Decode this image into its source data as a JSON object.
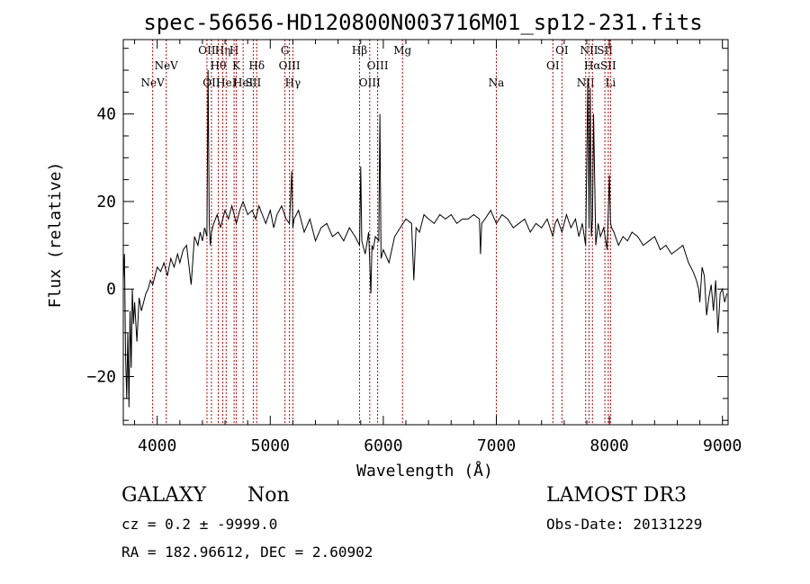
{
  "chart_data": {
    "type": "line",
    "title": "spec-56656-HD120800N003716M01_sp12-231.fits",
    "xlabel": "Wavelength (Å)",
    "ylabel": "Flux (relative)",
    "xlim": [
      3700,
      9050
    ],
    "ylim": [
      -31,
      57
    ],
    "x_ticks": [
      4000,
      5000,
      6000,
      7000,
      8000,
      9000
    ],
    "y_ticks": [
      -20,
      0,
      20,
      40
    ],
    "series": [
      {
        "color": "#000000",
        "x": [
          3700,
          3710,
          3720,
          3730,
          3740,
          3750,
          3760,
          3770,
          3780,
          3790,
          3800,
          3820,
          3840,
          3860,
          3880,
          3900,
          3920,
          3940,
          3960,
          3980,
          4000,
          4030,
          4060,
          4090,
          4120,
          4150,
          4180,
          4200,
          4230,
          4260,
          4300,
          4330,
          4360,
          4380,
          4400,
          4420,
          4440,
          4450,
          4460,
          4470,
          4480,
          4500,
          4530,
          4560,
          4600,
          4630,
          4660,
          4700,
          4730,
          4760,
          4800,
          4840,
          4870,
          4900,
          4930,
          4960,
          5000,
          5030,
          5060,
          5100,
          5140,
          5170,
          5190,
          5200,
          5210,
          5250,
          5300,
          5350,
          5400,
          5450,
          5500,
          5550,
          5600,
          5650,
          5700,
          5750,
          5790,
          5800,
          5810,
          5840,
          5870,
          5890,
          5900,
          5910,
          5930,
          5960,
          5970,
          5980,
          6000,
          6050,
          6100,
          6150,
          6200,
          6250,
          6270,
          6290,
          6320,
          6360,
          6400,
          6450,
          6500,
          6550,
          6600,
          6650,
          6700,
          6750,
          6800,
          6850,
          6860,
          6870,
          6900,
          6950,
          7000,
          7050,
          7100,
          7150,
          7200,
          7250,
          7300,
          7350,
          7400,
          7450,
          7500,
          7520,
          7540,
          7580,
          7620,
          7660,
          7700,
          7730,
          7760,
          7790,
          7810,
          7820,
          7830,
          7840,
          7850,
          7860,
          7880,
          7900,
          7920,
          7950,
          7980,
          8000,
          8010,
          8020,
          8040,
          8080,
          8120,
          8160,
          8200,
          8250,
          8300,
          8350,
          8400,
          8450,
          8500,
          8550,
          8600,
          8650,
          8700,
          8740,
          8770,
          8790,
          8800,
          8820,
          8840,
          8860,
          8880,
          8900,
          8920,
          8940,
          8960,
          8980,
          9000,
          9020,
          9040
        ],
        "y": [
          2,
          8,
          -15,
          -25,
          -10,
          -27,
          -5,
          -18,
          0,
          -8,
          -3,
          -12,
          -2,
          -5,
          -3,
          -1,
          0,
          2,
          1,
          3,
          5,
          4,
          6,
          3,
          7,
          5,
          8,
          6,
          9,
          10,
          1,
          12,
          10,
          13,
          11,
          14,
          12,
          50,
          15,
          10,
          13,
          15,
          17,
          14,
          18,
          16,
          19,
          15,
          18,
          20,
          17,
          18,
          16,
          19,
          17,
          15,
          18,
          14,
          17,
          19,
          16,
          15,
          27,
          14,
          16,
          18,
          13,
          16,
          11,
          14,
          15,
          12,
          13,
          11,
          14,
          12,
          10,
          28,
          11,
          8,
          13,
          -1,
          10,
          9,
          12,
          11,
          40,
          7,
          9,
          6,
          12,
          14,
          16,
          15,
          2,
          14,
          13,
          17,
          16,
          15,
          17,
          16,
          17,
          15,
          16,
          16,
          17,
          16,
          8,
          15,
          16,
          18,
          15,
          17,
          16,
          14,
          15,
          16,
          13,
          15,
          14,
          16,
          12,
          15,
          16,
          13,
          17,
          14,
          16,
          12,
          15,
          10,
          48,
          14,
          46,
          12,
          16,
          40,
          10,
          15,
          12,
          14,
          9,
          26,
          15,
          14,
          13,
          10,
          12,
          11,
          13,
          12,
          10,
          11,
          12,
          9,
          10,
          8,
          9,
          10,
          6,
          4,
          2,
          0,
          -3,
          5,
          3,
          -6,
          -2,
          1,
          -5,
          2,
          -10,
          -1,
          0,
          -3,
          -1
        ]
      }
    ],
    "line_markers": [
      {
        "wave": 3960,
        "label": "NeV",
        "row": 3
      },
      {
        "wave": 4080,
        "label": "NeV",
        "row": 2
      },
      {
        "wave": 4440,
        "label": "OII",
        "row": 1
      },
      {
        "wave": 4480,
        "label": "OII",
        "row": 3
      },
      {
        "wave": 4540,
        "label": "Hθ",
        "row": 2
      },
      {
        "wave": 4580,
        "label": "Hη",
        "row": 1
      },
      {
        "wave": 4610,
        "label": "HeI",
        "row": 3
      },
      {
        "wave": 4680,
        "label": "H",
        "row": 1
      },
      {
        "wave": 4700,
        "label": "K",
        "row": 2
      },
      {
        "wave": 4760,
        "label": "HeI",
        "row": 3
      },
      {
        "wave": 4850,
        "label": "SII",
        "row": 3
      },
      {
        "wave": 4880,
        "label": "Hδ",
        "row": 2
      },
      {
        "wave": 5130,
        "label": "G",
        "row": 1
      },
      {
        "wave": 5170,
        "label": "OIII",
        "row": 2
      },
      {
        "wave": 5200,
        "label": "Hγ",
        "row": 3
      },
      {
        "wave": 5790,
        "label": "Hβ",
        "row": 1
      },
      {
        "wave": 5880,
        "label": "OIII",
        "row": 3
      },
      {
        "wave": 5950,
        "label": "OIII",
        "row": 2
      },
      {
        "wave": 6170,
        "label": "Mg",
        "row": 1
      },
      {
        "wave": 7000,
        "label": "Na",
        "row": 3
      },
      {
        "wave": 7500,
        "label": "OI",
        "row": 2
      },
      {
        "wave": 7580,
        "label": "OI",
        "row": 1
      },
      {
        "wave": 7790,
        "label": "NII",
        "row": 3
      },
      {
        "wave": 7820,
        "label": "NII",
        "row": 1
      },
      {
        "wave": 7850,
        "label": "Hα",
        "row": 2
      },
      {
        "wave": 7960,
        "label": "SII",
        "row": 1
      },
      {
        "wave": 7990,
        "label": "SII",
        "row": 2
      },
      {
        "wave": 8010,
        "label": "Li",
        "row": 3
      }
    ]
  },
  "info": {
    "class_label": "GALAXY",
    "subclass_label": "Non",
    "survey_label": "LAMOST DR3",
    "cz_line": "cz = 0.2 ± -9999.0",
    "obs_date_line": "Obs-Date: 20131229",
    "coords_line": "RA = 182.96612, DEC =   2.60902"
  }
}
